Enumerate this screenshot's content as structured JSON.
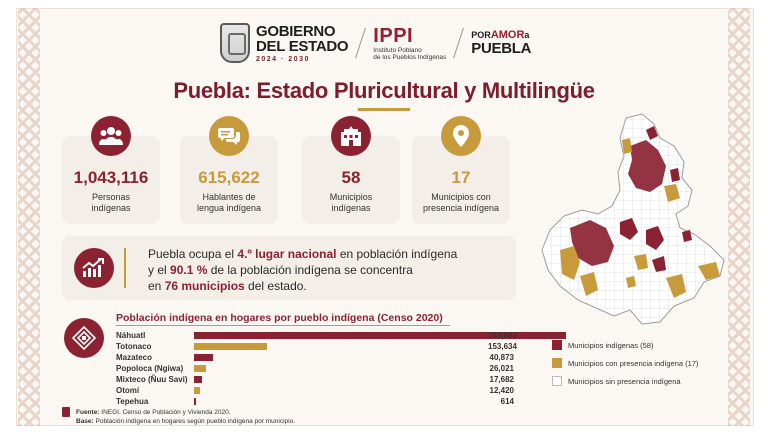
{
  "header": {
    "gob_line1": "GOBIERNO",
    "gob_line2": "DEL ESTADO",
    "gob_years": "2024 · 2030",
    "ippi_acronym": "IPPI",
    "ippi_line1": "Instituto Poblano",
    "ippi_line2": "de los Pueblos Indígenas",
    "por_amor_prefix": "POR",
    "por_amor_word": "AMOR",
    "por_amor_suffix": "a",
    "puebla": "PUEBLA"
  },
  "title": "Puebla: Estado Pluricultural y Multilingüe",
  "stats": [
    {
      "value": "1,043,116",
      "label_line1": "Personas",
      "label_line2": "indígenas",
      "icon": "people-icon"
    },
    {
      "value": "615,622",
      "label_line1": "Hablantes de",
      "label_line2": "lengua indígena",
      "icon": "speech-bubbles-icon"
    },
    {
      "value": "58",
      "label_line1": "Municipios",
      "label_line2": "indígenas",
      "icon": "building-icon"
    },
    {
      "value": "17",
      "label_line1": "Municipios con",
      "label_line2": "presencia indígena",
      "icon": "location-pin-icon"
    }
  ],
  "highlight": {
    "t1": "Puebla ocupa el ",
    "b1": "4.º lugar nacional",
    "t2": " en población indígena",
    "t3": "y el ",
    "b2": "90.1 %",
    "t4": " de la población indígena se concentra",
    "t5": "en ",
    "b3": "76 municipios",
    "t6": " del estado."
  },
  "chart_data": {
    "type": "bar",
    "title": "Población indígena en hogares por pueblo indígena (Censo 2020)",
    "categories": [
      "Náhuatl",
      "Totonaco",
      "Mazateco",
      "Popoloca (Ngiwa)",
      "Mixteco (Ñuu Savi)",
      "Otomí",
      "Tepehua"
    ],
    "values": [
      783607,
      153634,
      40873,
      26021,
      17682,
      12420,
      614
    ],
    "value_labels": [
      "783,607",
      "153,634",
      "40,873",
      "26,021",
      "17,682",
      "12,420",
      "614"
    ],
    "colors": [
      "#8b2232",
      "#c79a3c",
      "#8b2232",
      "#c79a3c",
      "#8b2232",
      "#c79a3c",
      "#8b2232"
    ]
  },
  "source": {
    "fuente_label": "Fuente:",
    "fuente_text": " INEGI. Censo de Población y Vivienda 2020.",
    "base_label": "Base:",
    "base_text": " Población indígena en hogares según pueblo indígena por municipio."
  },
  "legend": [
    {
      "label": "Municipios indígenas (58)",
      "color": "#8b2232"
    },
    {
      "label": "Municipios con presencia indígena (17)",
      "color": "#c79a3c"
    },
    {
      "label": "Municipios sin presencia indígena",
      "color": "#ffffff"
    }
  ]
}
